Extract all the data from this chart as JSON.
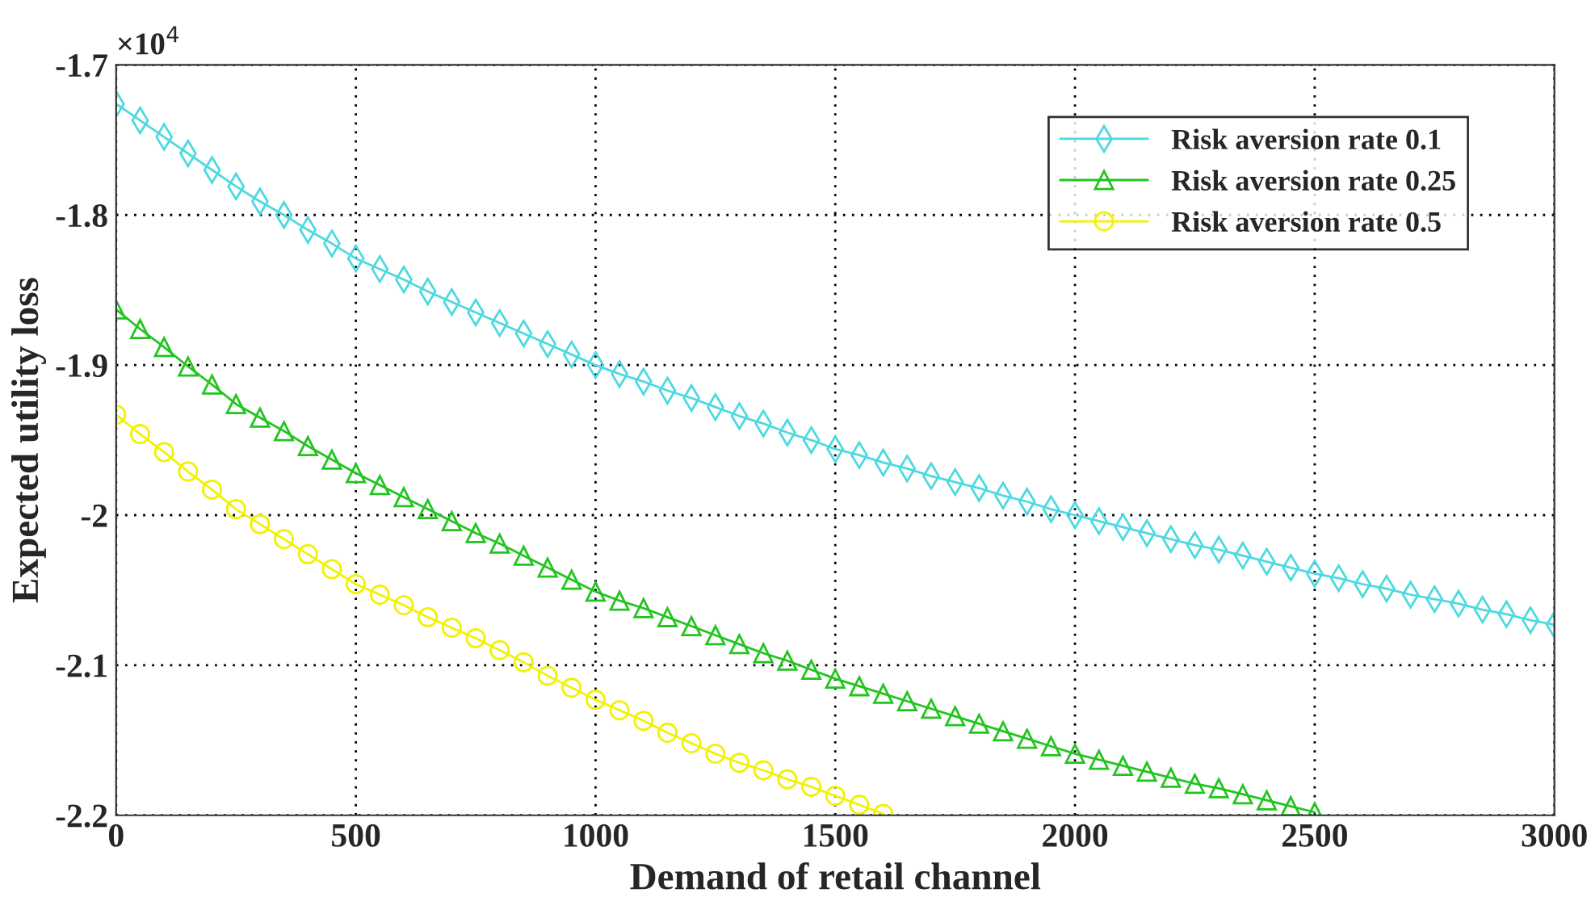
{
  "chart_data": {
    "type": "line",
    "xlabel": "Demand of retail channel",
    "ylabel": "Expected utility loss",
    "annotations": [
      "×10$^{4}$"
    ],
    "x": [
      0,
      50,
      100,
      150,
      200,
      250,
      300,
      350,
      400,
      450,
      500,
      550,
      600,
      650,
      700,
      750,
      800,
      850,
      900,
      950,
      1000,
      1050,
      1100,
      1150,
      1200,
      1250,
      1300,
      1350,
      1400,
      1450,
      1500,
      1550,
      1600,
      1650,
      1700,
      1750,
      1800,
      1850,
      1900,
      1950,
      2000,
      2050,
      2100,
      2150,
      2200,
      2250,
      2300,
      2350,
      2400,
      2450,
      2500,
      2550,
      2600,
      2650,
      2700,
      2750,
      2800,
      2850,
      2900,
      2950,
      3000
    ],
    "series": [
      {
        "name": "Risk aversion rate 0.1",
        "color": "#4dd9e0",
        "marker": "diamond",
        "values": [
          -1.726,
          -1.737,
          -1.748,
          -1.759,
          -1.77,
          -1.781,
          -1.791,
          -1.8,
          -1.81,
          -1.819,
          -1.829,
          -1.836,
          -1.843,
          -1.851,
          -1.858,
          -1.865,
          -1.872,
          -1.879,
          -1.886,
          -1.893,
          -1.9,
          -1.906,
          -1.911,
          -1.917,
          -1.922,
          -1.928,
          -1.934,
          -1.939,
          -1.945,
          -1.95,
          -1.956,
          -1.96,
          -1.965,
          -1.969,
          -1.974,
          -1.978,
          -1.982,
          -1.987,
          -1.991,
          -1.996,
          -2.0,
          -2.004,
          -2.008,
          -2.012,
          -2.016,
          -2.02,
          -2.023,
          -2.027,
          -2.031,
          -2.035,
          -2.039,
          -2.042,
          -2.046,
          -2.049,
          -2.053,
          -2.056,
          -2.059,
          -2.063,
          -2.066,
          -2.07,
          -2.073
        ]
      },
      {
        "name": "Risk aversion rate 0.25",
        "color": "#22c41e",
        "marker": "triangle",
        "values": [
          -1.863,
          -1.876,
          -1.888,
          -1.901,
          -1.913,
          -1.926,
          -1.935,
          -1.944,
          -1.954,
          -1.963,
          -1.972,
          -1.98,
          -1.988,
          -1.996,
          -2.004,
          -2.012,
          -2.019,
          -2.027,
          -2.035,
          -2.043,
          -2.051,
          -2.057,
          -2.062,
          -2.068,
          -2.074,
          -2.08,
          -2.086,
          -2.092,
          -2.097,
          -2.103,
          -2.109,
          -2.114,
          -2.119,
          -2.124,
          -2.129,
          -2.134,
          -2.139,
          -2.144,
          -2.149,
          -2.154,
          -2.159,
          -2.163,
          -2.167,
          -2.171,
          -2.175,
          -2.179,
          -2.182,
          -2.186,
          -2.19,
          -2.194,
          -2.198,
          null,
          null,
          null,
          null,
          null,
          null,
          null,
          null,
          null,
          null
        ]
      },
      {
        "name": "Risk aversion rate 0.5",
        "color": "#f2f200",
        "marker": "circle",
        "values": [
          -1.933,
          -1.946,
          -1.958,
          -1.971,
          -1.983,
          -1.996,
          -2.006,
          -2.016,
          -2.026,
          -2.036,
          -2.046,
          -2.053,
          -2.06,
          -2.068,
          -2.075,
          -2.082,
          -2.09,
          -2.098,
          -2.107,
          -2.115,
          -2.123,
          -2.13,
          -2.137,
          -2.145,
          -2.152,
          -2.159,
          -2.165,
          -2.17,
          -2.176,
          -2.181,
          -2.187,
          -2.193,
          -2.199,
          null,
          null,
          null,
          null,
          null,
          null,
          null,
          null,
          null,
          null,
          null,
          null,
          null,
          null,
          null,
          null,
          null,
          null,
          null,
          null,
          null,
          null,
          null,
          null,
          null,
          null,
          null,
          null
        ]
      }
    ],
    "xlim": [
      0,
      3000
    ],
    "xticks": [
      0,
      500,
      1000,
      1500,
      2000,
      2500,
      3000
    ],
    "ylim": [
      -2.2,
      -1.7
    ],
    "yticks": [
      -2.2,
      -2.1,
      -2,
      -1.9,
      -1.8,
      -1.7
    ],
    "grid": true,
    "legend": "top right",
    "line_style": "solid"
  }
}
